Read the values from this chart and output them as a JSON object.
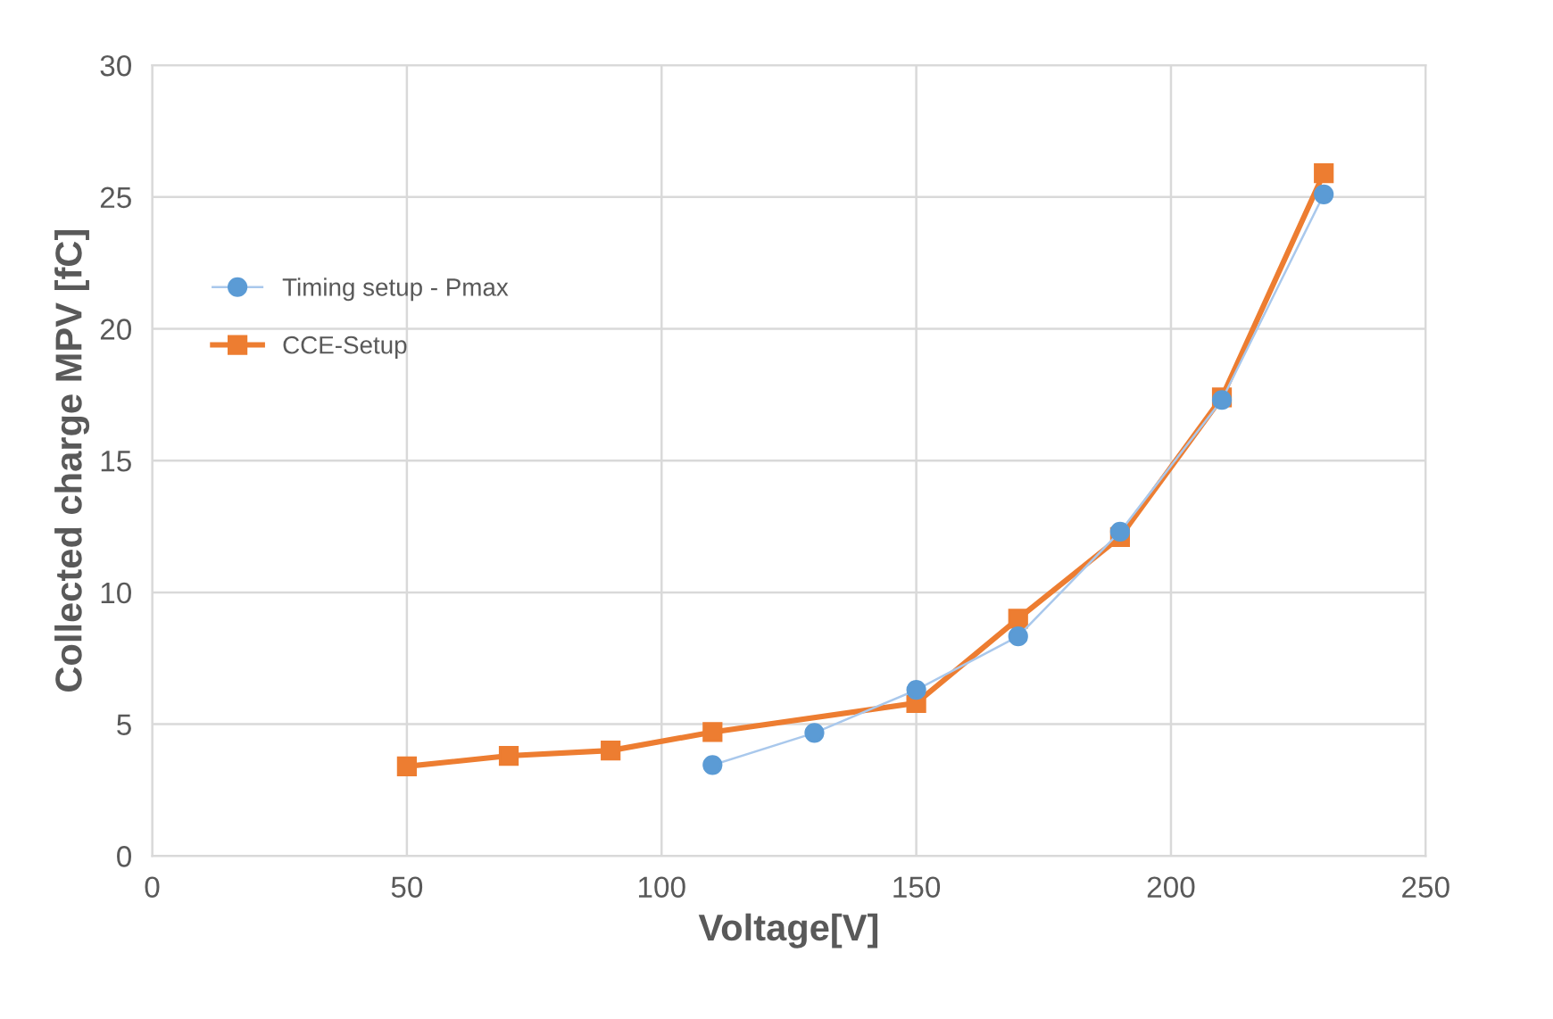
{
  "chart_data": {
    "type": "line",
    "xlabel": "Voltage[V]",
    "ylabel": "Collected charge MPV [fC]",
    "xlim": [
      0,
      250
    ],
    "xticks": [
      0,
      50,
      100,
      150,
      200,
      250
    ],
    "ylim": [
      0,
      30
    ],
    "yticks": [
      0,
      5,
      10,
      15,
      20,
      25,
      30
    ],
    "grid": true,
    "legend": "left",
    "series": [
      {
        "name": "Timing setup - Pmax",
        "color": "#5b9bd5",
        "marker": "circle",
        "x": [
          110,
          130,
          150,
          170,
          190,
          210,
          230
        ],
        "values": [
          3.45,
          4.67,
          6.3,
          8.33,
          12.3,
          17.3,
          25.1
        ]
      },
      {
        "name": "CCE-Setup",
        "color": "#ed7d31",
        "marker": "square",
        "x": [
          50,
          70,
          90,
          110,
          150,
          170,
          190,
          210,
          230
        ],
        "values": [
          3.4,
          3.8,
          4.0,
          4.7,
          5.8,
          9.0,
          12.1,
          17.4,
          25.9
        ]
      }
    ]
  }
}
